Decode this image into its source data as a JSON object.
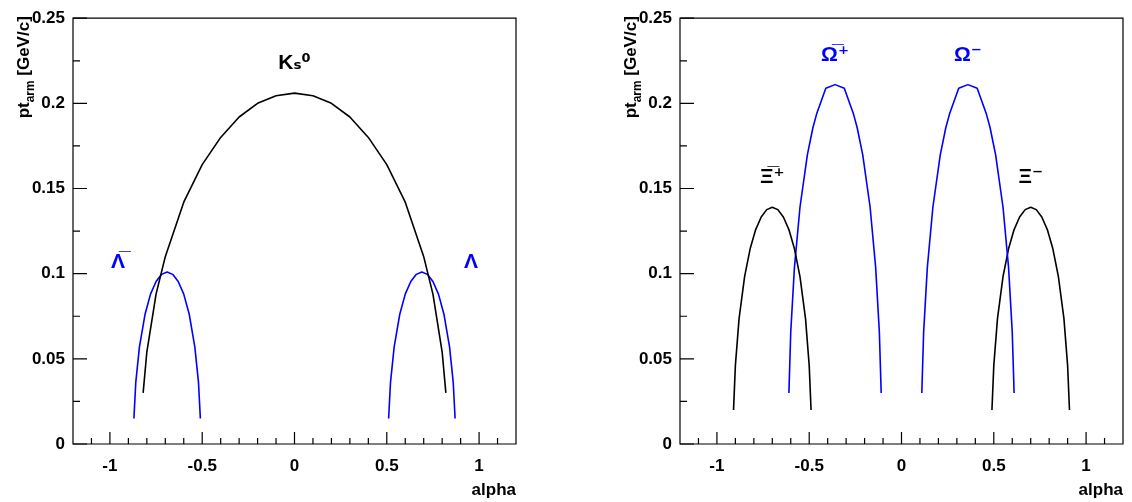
{
  "chart_data": [
    {
      "type": "line",
      "xlabel": "alpha",
      "ylabel": "pt$_{arm}$ [GeV/c]",
      "xlim": [
        -1.2,
        1.2
      ],
      "ylim": [
        0,
        0.25
      ],
      "xticks": [
        {
          "value": -1.1,
          "label": null
        },
        -1,
        {
          "value": -0.9,
          "label": null
        },
        {
          "value": -0.8,
          "label": null
        },
        {
          "value": -0.7,
          "label": null
        },
        {
          "value": -0.6,
          "label": null
        },
        -0.5,
        {
          "value": -0.4,
          "label": null
        },
        {
          "value": -0.3,
          "label": null
        },
        {
          "value": -0.2,
          "label": null
        },
        {
          "value": -0.1,
          "label": null
        },
        0,
        {
          "value": 0.1,
          "label": null
        },
        {
          "value": 0.2,
          "label": null
        },
        {
          "value": 0.3,
          "label": null
        },
        {
          "value": 0.4,
          "label": null
        },
        0.5,
        {
          "value": 0.6,
          "label": null
        },
        {
          "value": 0.7,
          "label": null
        },
        {
          "value": 0.8,
          "label": null
        },
        {
          "value": 0.9,
          "label": null
        },
        1,
        {
          "value": 1.1,
          "label": null
        }
      ],
      "yticks": [
        0,
        {
          "value": 0.025,
          "label": null
        },
        0.05,
        {
          "value": 0.075,
          "label": null
        },
        0.1,
        {
          "value": 0.125,
          "label": null
        },
        0.15,
        {
          "value": 0.175,
          "label": null
        },
        0.2,
        {
          "value": 0.225,
          "label": null
        },
        0.25
      ],
      "series": [
        {
          "name": "Kₛ⁰",
          "color": "#000000",
          "x": [
            -0.82,
            -0.8,
            -0.75,
            -0.7,
            -0.6,
            -0.5,
            -0.4,
            -0.3,
            -0.2,
            -0.1,
            0,
            0.1,
            0.2,
            0.3,
            0.4,
            0.5,
            0.6,
            0.7,
            0.75,
            0.8,
            0.82
          ],
          "values": [
            0.03,
            0.054,
            0.088,
            0.11,
            0.142,
            0.164,
            0.18,
            0.192,
            0.2,
            0.2045,
            0.206,
            0.2045,
            0.2,
            0.192,
            0.18,
            0.164,
            0.142,
            0.11,
            0.088,
            0.054,
            0.03
          ]
        },
        {
          "name": "Λ̅",
          "color": "#0000ff",
          "x": [
            -0.87,
            -0.86,
            -0.84,
            -0.81,
            -0.78,
            -0.75,
            -0.72,
            -0.69,
            -0.66,
            -0.63,
            -0.6,
            -0.57,
            -0.54,
            -0.52,
            -0.51
          ],
          "values": [
            0.015,
            0.036,
            0.057,
            0.076,
            0.088,
            0.0954,
            0.0996,
            0.101,
            0.0996,
            0.0954,
            0.088,
            0.076,
            0.057,
            0.036,
            0.015
          ]
        },
        {
          "name": "Λ",
          "color": "#0000ff",
          "x": [
            0.51,
            0.52,
            0.54,
            0.57,
            0.6,
            0.63,
            0.66,
            0.69,
            0.72,
            0.75,
            0.78,
            0.81,
            0.84,
            0.86,
            0.87
          ],
          "values": [
            0.015,
            0.036,
            0.057,
            0.076,
            0.088,
            0.0954,
            0.0996,
            0.101,
            0.0996,
            0.0954,
            0.088,
            0.076,
            0.057,
            0.036,
            0.015
          ]
        }
      ]
    },
    {
      "type": "line",
      "xlabel": "alpha",
      "ylabel": "pt$_{arm}$ [GeV/c]",
      "xlim": [
        -1.2,
        1.2
      ],
      "ylim": [
        0,
        0.25
      ],
      "xticks": [
        {
          "value": -1.1,
          "label": null
        },
        -1,
        {
          "value": -0.9,
          "label": null
        },
        {
          "value": -0.8,
          "label": null
        },
        {
          "value": -0.7,
          "label": null
        },
        {
          "value": -0.6,
          "label": null
        },
        -0.5,
        {
          "value": -0.4,
          "label": null
        },
        {
          "value": -0.3,
          "label": null
        },
        {
          "value": -0.2,
          "label": null
        },
        {
          "value": -0.1,
          "label": null
        },
        0,
        {
          "value": 0.1,
          "label": null
        },
        {
          "value": 0.2,
          "label": null
        },
        {
          "value": 0.3,
          "label": null
        },
        {
          "value": 0.4,
          "label": null
        },
        0.5,
        {
          "value": 0.6,
          "label": null
        },
        {
          "value": 0.7,
          "label": null
        },
        {
          "value": 0.8,
          "label": null
        },
        {
          "value": 0.9,
          "label": null
        },
        1,
        {
          "value": 1.1,
          "label": null
        }
      ],
      "yticks": [
        0,
        {
          "value": 0.025,
          "label": null
        },
        0.05,
        {
          "value": 0.075,
          "label": null
        },
        0.1,
        {
          "value": 0.125,
          "label": null
        },
        0.15,
        {
          "value": 0.175,
          "label": null
        },
        0.2,
        {
          "value": 0.225,
          "label": null
        },
        0.25
      ],
      "series": [
        {
          "name": "Ξ̅⁺",
          "color": "#000000",
          "x": [
            -0.91,
            -0.9,
            -0.88,
            -0.85,
            -0.82,
            -0.79,
            -0.76,
            -0.73,
            -0.7,
            -0.67,
            -0.64,
            -0.61,
            -0.58,
            -0.55,
            -0.52,
            -0.5,
            -0.49
          ],
          "values": [
            0.02,
            0.046,
            0.0736,
            0.0983,
            0.1146,
            0.1259,
            0.1333,
            0.1376,
            0.139,
            0.1376,
            0.1333,
            0.1259,
            0.1146,
            0.0983,
            0.0736,
            0.046,
            0.02
          ]
        },
        {
          "name": "Ω̅⁺",
          "color": "#0000ff",
          "x": [
            -0.61,
            -0.6,
            -0.58,
            -0.55,
            -0.51,
            -0.48,
            -0.46,
            -0.41,
            -0.36,
            -0.31,
            -0.26,
            -0.24,
            -0.21,
            -0.17,
            -0.14,
            -0.12,
            -0.11
          ],
          "values": [
            0.03,
            0.0658,
            0.1037,
            0.139,
            0.1698,
            0.1857,
            0.1937,
            0.2089,
            0.211,
            0.2089,
            0.1937,
            0.1857,
            0.1698,
            0.139,
            0.1037,
            0.0658,
            0.03
          ]
        },
        {
          "name": "Ω⁻",
          "color": "#0000ff",
          "x": [
            0.11,
            0.12,
            0.14,
            0.17,
            0.21,
            0.24,
            0.26,
            0.31,
            0.36,
            0.41,
            0.46,
            0.48,
            0.51,
            0.55,
            0.58,
            0.6,
            0.61
          ],
          "values": [
            0.03,
            0.0658,
            0.1037,
            0.139,
            0.1698,
            0.1857,
            0.1937,
            0.2089,
            0.211,
            0.2089,
            0.1937,
            0.1857,
            0.1698,
            0.139,
            0.1037,
            0.0658,
            0.03
          ]
        },
        {
          "name": "Ξ⁻",
          "color": "#000000",
          "x": [
            0.49,
            0.5,
            0.52,
            0.55,
            0.58,
            0.61,
            0.64,
            0.67,
            0.7,
            0.73,
            0.76,
            0.79,
            0.82,
            0.85,
            0.88,
            0.9,
            0.91
          ],
          "values": [
            0.02,
            0.046,
            0.0736,
            0.0983,
            0.1146,
            0.1259,
            0.1333,
            0.1376,
            0.139,
            0.1376,
            0.1333,
            0.1259,
            0.1146,
            0.0983,
            0.0736,
            0.046,
            0.02
          ]
        }
      ]
    }
  ]
}
